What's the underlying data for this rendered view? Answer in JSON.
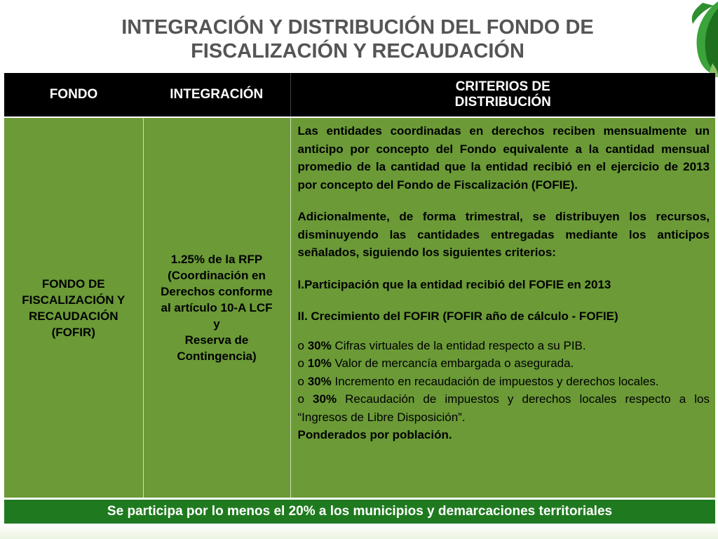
{
  "title": {
    "line1": "INTEGRACIÓN Y DISTRIBUCIÓN DEL FONDO DE",
    "line2": "FISCALIZACIÓN Y RECAUDACIÓN"
  },
  "table": {
    "headers": {
      "fondo": "FONDO",
      "integracion": "INTEGRACIÓN",
      "criterios_line1": "CRITERIOS DE",
      "criterios_line2": "DISTRIBUCIÓN"
    },
    "fondo_lines": [
      "FONDO DE",
      "FISCALIZACIÓN Y",
      "RECAUDACIÓN",
      "(FOFIR)"
    ],
    "integracion_lines": [
      "1.25% de la RFP",
      "(Coordinación en",
      "Derechos conforme",
      "al artículo 10-A LCF",
      "y",
      "Reserva de",
      "Contingencia)"
    ],
    "criterios": {
      "p1": "Las entidades coordinadas en derechos reciben mensualmente un anticipo por concepto del Fondo equivalente a la cantidad mensual promedio de la cantidad que la entidad recibió en el ejercicio de 2013 por concepto del Fondo de Fiscalización (FOFIE).",
      "p2": "Adicionalmente, de forma trimestral, se distribuyen los recursos, disminuyendo las cantidades entregadas mediante los anticipos señalados, siguiendo los siguientes criterios:",
      "p3": "I.Participación que la entidad recibió del FOFIE en 2013",
      "p4": "II. Crecimiento del FOFIR (FOFIR año de cálculo - FOFIE)",
      "bullet_symbol": "o",
      "bullets": [
        {
          "pct": "30%",
          "text": "Cifras virtuales de la entidad respecto a su PIB."
        },
        {
          "pct": "10%",
          "text": "Valor de mercancía embargada o asegurada."
        },
        {
          "pct": "30%",
          "text": "Incremento en recaudación de impuestos y derechos locales."
        },
        {
          "pct": "30%",
          "text": "Recaudación de impuestos y derechos locales respecto a los “Ingresos de Libre Disposición”."
        }
      ],
      "closing": "Ponderados por población."
    }
  },
  "footer": "Se participa por lo menos el 20% a los municipios y demarcaciones territoriales",
  "colors": {
    "header_bg": "#000000",
    "cell_bg": "#6b9a37",
    "footer_bg": "#1f7a1f",
    "title_color": "#555555"
  }
}
